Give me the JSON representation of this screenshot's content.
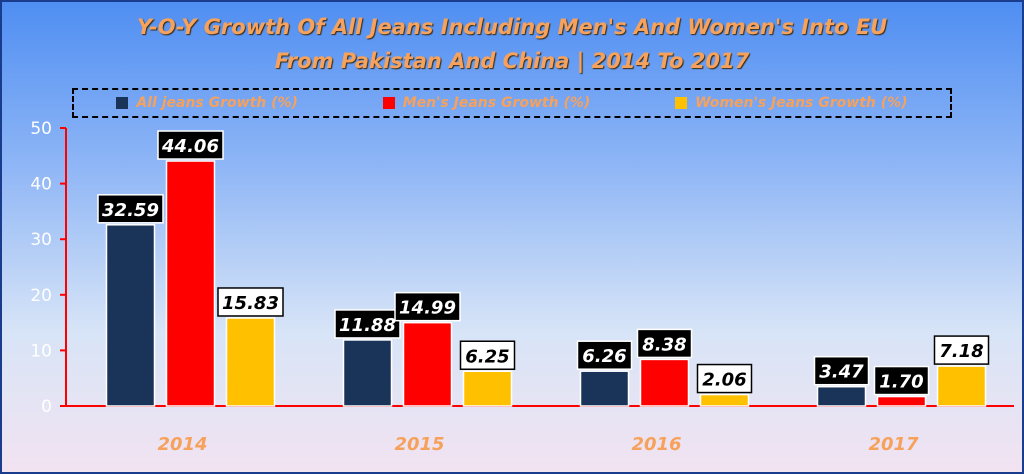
{
  "chart_data": {
    "type": "bar",
    "title_line1": "Y-O-Y Growth Of All Jeans Including Men's And Women's Into EU",
    "title_line2": "From Pakistan And China | 2014 To 2017",
    "categories": [
      "2014",
      "2015",
      "2016",
      "2017"
    ],
    "series": [
      {
        "name": "All jeans  Growth (%)",
        "color": "#1a3358",
        "values": [
          32.59,
          11.88,
          6.26,
          3.47
        ],
        "labels": [
          "32.59",
          "11.88",
          "6.26",
          "3.47"
        ],
        "label_style": "dark"
      },
      {
        "name": "Men's Jeans  Growth (%)",
        "color": "#ff0000",
        "values": [
          44.06,
          14.99,
          8.38,
          1.7
        ],
        "labels": [
          "44.06",
          "14.99",
          "8.38",
          "1.70"
        ],
        "label_style": "dark"
      },
      {
        "name": "Women's Jeans  Growth (%)",
        "color": "#ffc000",
        "values": [
          15.83,
          6.25,
          2.06,
          7.18
        ],
        "labels": [
          "15.83",
          "6.25",
          "2.06",
          "7.18"
        ],
        "label_style": "light"
      }
    ],
    "ylim": [
      0,
      50
    ],
    "yticks": [
      "0",
      "10",
      "20",
      "30",
      "40",
      "50"
    ],
    "grid": false,
    "legend_position": "top",
    "axis_color": "#ff0000",
    "background": "gradient-blue-to-pink"
  }
}
